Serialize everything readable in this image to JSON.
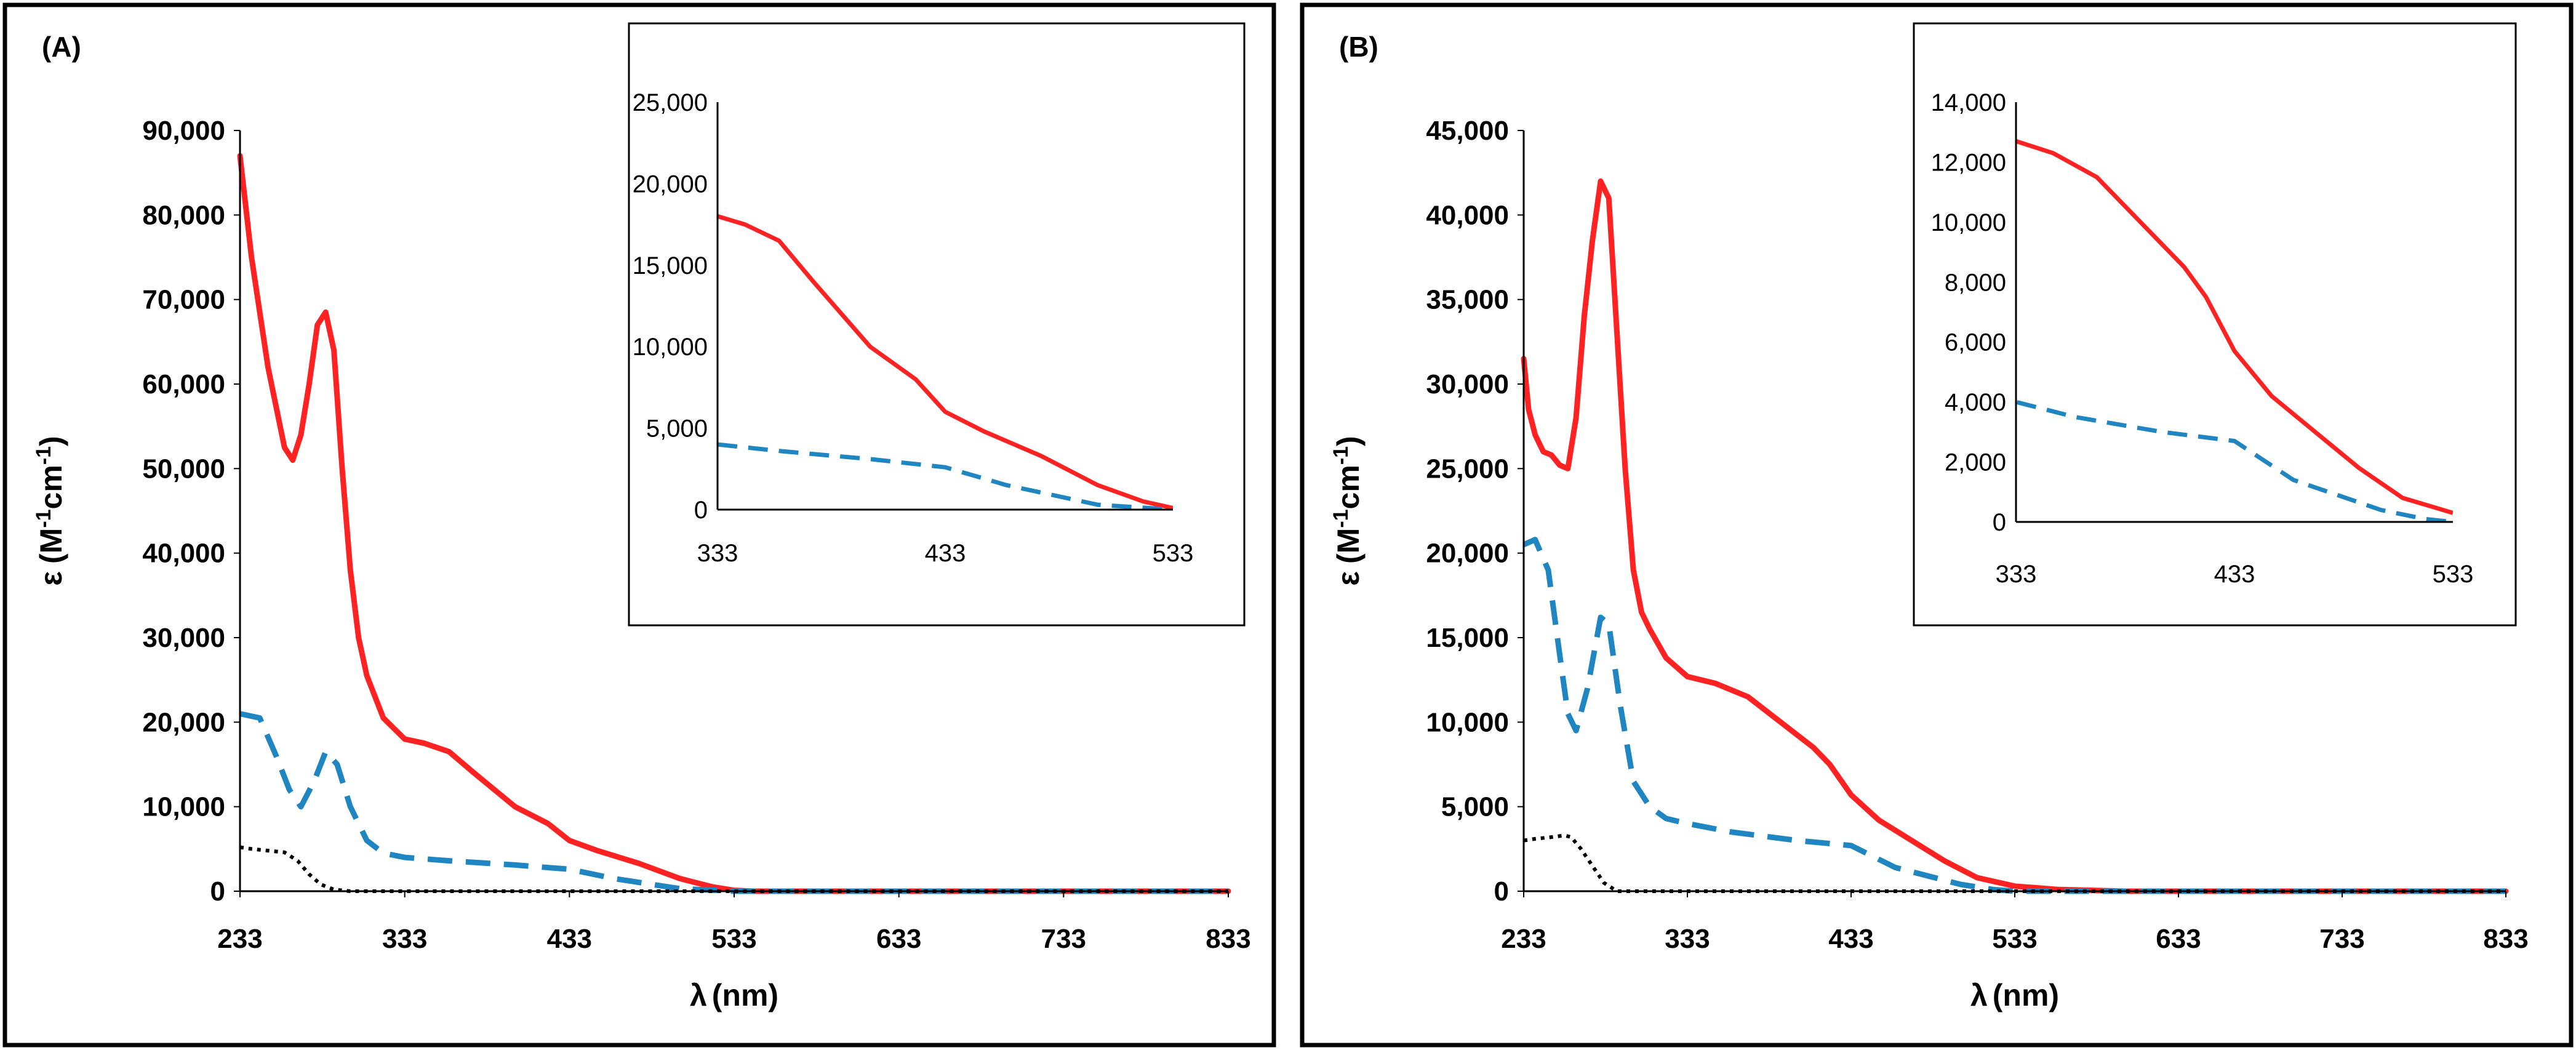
{
  "colors": {
    "red": "#ff2222",
    "blue": "#1f86c2",
    "black": "#000000"
  },
  "chart_data": [
    {
      "type": "line",
      "panel_label": "(A)",
      "xlabel_sym": "λ",
      "xlabel_unit": "(nm)",
      "ylabel_sym": "ε",
      "ylabel_pre": "(M",
      "ylabel_sup1": "-1",
      "ylabel_mid": "cm",
      "ylabel_sup2": "-1",
      "ylabel_post": ")",
      "xlim": [
        233,
        833
      ],
      "ylim": [
        0,
        90000
      ],
      "xticks": [
        233,
        333,
        433,
        533,
        633,
        733,
        833
      ],
      "xtick_labels": [
        "233",
        "333",
        "433",
        "533",
        "633",
        "733",
        "833"
      ],
      "yticks": [
        0,
        10000,
        20000,
        30000,
        40000,
        50000,
        60000,
        70000,
        80000,
        90000
      ],
      "ytick_labels": [
        "0",
        "10,000",
        "20,000",
        "30,000",
        "40,000",
        "50,000",
        "60,000",
        "70,000",
        "80,000",
        "90,000"
      ],
      "series": [
        {
          "name": "red solid",
          "style": "solid",
          "color": "#ff2222",
          "x": [
            233,
            240,
            250,
            260,
            265,
            270,
            275,
            280,
            285,
            290,
            295,
            300,
            305,
            310,
            320,
            333,
            345,
            360,
            375,
            400,
            420,
            433,
            450,
            475,
            500,
            520,
            533,
            545,
            560,
            833
          ],
          "y": [
            87000,
            75000,
            62000,
            52500,
            51000,
            54000,
            60000,
            67000,
            68500,
            64000,
            50000,
            38000,
            30000,
            25500,
            20500,
            18000,
            17500,
            16500,
            14000,
            10000,
            8000,
            6000,
            4800,
            3300,
            1500,
            500,
            100,
            0,
            0,
            0
          ]
        },
        {
          "name": "blue dashed",
          "style": "dashed",
          "color": "#1f86c2",
          "x": [
            233,
            245,
            255,
            263,
            270,
            278,
            285,
            292,
            300,
            310,
            320,
            333,
            360,
            400,
            433,
            460,
            500,
            533,
            833
          ],
          "y": [
            21000,
            20500,
            16000,
            12000,
            10000,
            13000,
            16500,
            15000,
            10000,
            6000,
            4500,
            4000,
            3600,
            3100,
            2600,
            1500,
            300,
            0,
            0
          ]
        },
        {
          "name": "black dotted",
          "style": "dotted",
          "color": "#000000",
          "x": [
            233,
            240,
            250,
            260,
            268,
            275,
            282,
            290,
            300,
            833
          ],
          "y": [
            5200,
            5000,
            4800,
            4600,
            3600,
            2000,
            800,
            200,
            0,
            0
          ]
        }
      ],
      "inset": {
        "xlim": [
          333,
          533
        ],
        "ylim": [
          0,
          25000
        ],
        "xticks": [
          333,
          433,
          533
        ],
        "xtick_labels": [
          "333",
          "433",
          "533"
        ],
        "yticks": [
          0,
          5000,
          10000,
          15000,
          20000,
          25000
        ],
        "ytick_labels": [
          "0",
          "5,000",
          "10,000",
          "15,000",
          "20,000",
          "25,000"
        ]
      }
    },
    {
      "type": "line",
      "panel_label": "(B)",
      "xlabel_sym": "λ",
      "xlabel_unit": "(nm)",
      "ylabel_sym": "ε",
      "ylabel_pre": "(M",
      "ylabel_sup1": "-1",
      "ylabel_mid": "cm",
      "ylabel_sup2": "-1",
      "ylabel_post": ")",
      "xlim": [
        233,
        833
      ],
      "ylim": [
        0,
        45000
      ],
      "xticks": [
        233,
        333,
        433,
        533,
        633,
        733,
        833
      ],
      "xtick_labels": [
        "233",
        "333",
        "433",
        "533",
        "633",
        "733",
        "833"
      ],
      "yticks": [
        0,
        5000,
        10000,
        15000,
        20000,
        25000,
        30000,
        35000,
        40000,
        45000
      ],
      "ytick_labels": [
        "0",
        "5,000",
        "10,000",
        "15,000",
        "20,000",
        "25,000",
        "30,000",
        "35,000",
        "40,000",
        "45,000"
      ],
      "series": [
        {
          "name": "red solid",
          "style": "solid",
          "color": "#ff2222",
          "x": [
            233,
            236,
            240,
            245,
            250,
            255,
            260,
            265,
            270,
            275,
            280,
            285,
            290,
            295,
            300,
            305,
            310,
            320,
            333,
            350,
            370,
            390,
            410,
            420,
            433,
            450,
            470,
            490,
            510,
            533,
            560,
            600,
            833
          ],
          "y": [
            31500,
            28500,
            27000,
            26000,
            25800,
            25200,
            25000,
            28000,
            34000,
            38500,
            42000,
            41000,
            33000,
            25000,
            19000,
            16500,
            15500,
            13800,
            12700,
            12300,
            11500,
            10000,
            8500,
            7500,
            5700,
            4200,
            3000,
            1800,
            800,
            300,
            100,
            0,
            0
          ]
        },
        {
          "name": "blue dashed",
          "style": "dashed",
          "color": "#1f86c2",
          "x": [
            233,
            240,
            248,
            255,
            260,
            265,
            272,
            280,
            285,
            292,
            300,
            310,
            320,
            333,
            360,
            400,
            433,
            460,
            500,
            520,
            533,
            833
          ],
          "y": [
            20500,
            20800,
            19000,
            14000,
            10500,
            9500,
            12000,
            16200,
            15800,
            11000,
            6500,
            5000,
            4300,
            4000,
            3500,
            3000,
            2700,
            1400,
            400,
            100,
            0,
            0
          ]
        },
        {
          "name": "black dotted",
          "style": "dotted",
          "color": "#000000",
          "x": [
            233,
            240,
            250,
            258,
            262,
            268,
            275,
            282,
            290,
            833
          ],
          "y": [
            3000,
            3100,
            3200,
            3300,
            3200,
            2500,
            1500,
            500,
            0,
            0
          ]
        }
      ],
      "inset": {
        "xlim": [
          333,
          533
        ],
        "ylim": [
          0,
          14000
        ],
        "xticks": [
          333,
          433,
          533
        ],
        "xtick_labels": [
          "333",
          "433",
          "533"
        ],
        "yticks": [
          0,
          2000,
          4000,
          6000,
          8000,
          10000,
          12000,
          14000
        ],
        "ytick_labels": [
          "0",
          "2,000",
          "4,000",
          "6,000",
          "8,000",
          "10,000",
          "12,000",
          "14,000"
        ]
      }
    }
  ]
}
